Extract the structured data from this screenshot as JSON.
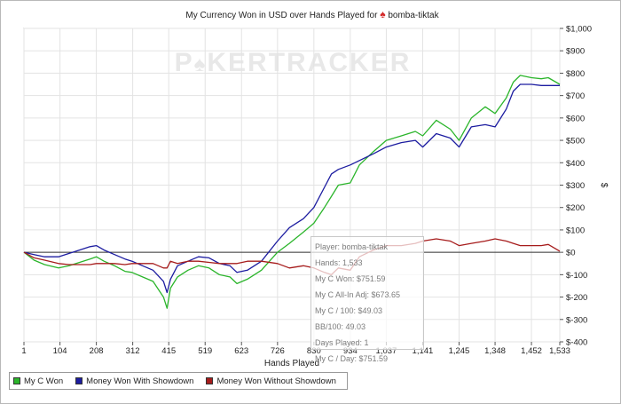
{
  "chart_data": {
    "type": "line",
    "title": "My Currency Won in USD over Hands Played for",
    "player_name": "bomba-tiktak",
    "watermark": {
      "left": "P",
      "mid": "KER",
      "right": "TRACKER"
    },
    "xlabel": "Hands Played",
    "ylabel": "$",
    "xlim": [
      1,
      1533
    ],
    "ylim": [
      -400,
      1000
    ],
    "x_ticks": [
      1,
      104,
      208,
      312,
      415,
      519,
      623,
      726,
      830,
      934,
      1037,
      1141,
      1245,
      1348,
      1452,
      1533
    ],
    "x_tick_labels": [
      "1",
      "104",
      "208",
      "312",
      "415",
      "519",
      "623",
      "726",
      "830",
      "934",
      "1,037",
      "1,141",
      "1,245",
      "1,348",
      "1,452",
      "1,533"
    ],
    "y_ticks": [
      -400,
      -300,
      -200,
      -100,
      0,
      100,
      200,
      300,
      400,
      500,
      600,
      700,
      800,
      900,
      1000
    ],
    "y_tick_labels": [
      "$-400",
      "$-300",
      "$-200",
      "$-100",
      "$0",
      "$100",
      "$200",
      "$300",
      "$400",
      "$500",
      "$600",
      "$700",
      "$800",
      "$900",
      "$1,000"
    ],
    "grid": true,
    "legend_position": "bottom-left",
    "series": [
      {
        "name": "My C Won",
        "color": "#2bb52b",
        "x": [
          1,
          30,
          60,
          100,
          130,
          160,
          190,
          208,
          230,
          260,
          290,
          310,
          340,
          370,
          400,
          410,
          420,
          440,
          470,
          500,
          530,
          560,
          590,
          610,
          640,
          680,
          726,
          760,
          800,
          830,
          860,
          880,
          900,
          934,
          960,
          1000,
          1037,
          1080,
          1120,
          1141,
          1180,
          1220,
          1245,
          1280,
          1320,
          1348,
          1380,
          1400,
          1420,
          1452,
          1480,
          1500,
          1533
        ],
        "y": [
          0,
          -35,
          -55,
          -70,
          -60,
          -45,
          -30,
          -20,
          -40,
          -60,
          -85,
          -90,
          -110,
          -130,
          -200,
          -250,
          -160,
          -110,
          -80,
          -60,
          -70,
          -100,
          -110,
          -140,
          -120,
          -80,
          0,
          40,
          90,
          130,
          200,
          250,
          300,
          310,
          390,
          450,
          500,
          520,
          540,
          520,
          590,
          550,
          500,
          600,
          650,
          620,
          690,
          760,
          790,
          780,
          775,
          780,
          750
        ]
      },
      {
        "name": "Money Won With Showdown",
        "color": "#1c1ca0",
        "x": [
          1,
          30,
          60,
          100,
          130,
          160,
          190,
          208,
          230,
          260,
          290,
          310,
          340,
          370,
          400,
          410,
          420,
          440,
          470,
          500,
          530,
          560,
          590,
          610,
          640,
          680,
          726,
          760,
          800,
          830,
          860,
          880,
          900,
          934,
          960,
          1000,
          1037,
          1080,
          1120,
          1141,
          1180,
          1220,
          1245,
          1280,
          1320,
          1348,
          1380,
          1400,
          1420,
          1452,
          1480,
          1500,
          1533
        ],
        "y": [
          0,
          -10,
          -20,
          -20,
          -5,
          10,
          25,
          30,
          10,
          -10,
          -30,
          -40,
          -60,
          -80,
          -130,
          -180,
          -120,
          -60,
          -40,
          -20,
          -25,
          -50,
          -60,
          -90,
          -80,
          -40,
          50,
          110,
          150,
          200,
          290,
          350,
          370,
          390,
          410,
          440,
          470,
          490,
          500,
          470,
          530,
          510,
          470,
          560,
          570,
          560,
          640,
          720,
          750,
          750,
          745,
          745,
          745
        ]
      },
      {
        "name": "Money Won Without Showdown",
        "color": "#a61c1c",
        "x": [
          1,
          30,
          60,
          100,
          130,
          160,
          190,
          208,
          230,
          260,
          290,
          310,
          340,
          370,
          400,
          410,
          420,
          440,
          470,
          500,
          530,
          560,
          590,
          610,
          640,
          680,
          726,
          760,
          800,
          830,
          860,
          880,
          900,
          934,
          960,
          1000,
          1037,
          1080,
          1120,
          1141,
          1180,
          1220,
          1245,
          1280,
          1320,
          1348,
          1380,
          1400,
          1420,
          1452,
          1480,
          1500,
          1533
        ],
        "y": [
          0,
          -25,
          -35,
          -50,
          -55,
          -55,
          -55,
          -50,
          -50,
          -50,
          -55,
          -50,
          -50,
          -50,
          -70,
          -70,
          -40,
          -50,
          -40,
          -40,
          -45,
          -50,
          -50,
          -50,
          -40,
          -40,
          -50,
          -70,
          -60,
          -70,
          -90,
          -100,
          -70,
          -80,
          -20,
          10,
          30,
          30,
          40,
          50,
          60,
          50,
          30,
          40,
          50,
          60,
          50,
          40,
          30,
          30,
          30,
          35,
          5
        ]
      }
    ]
  },
  "tooltip": {
    "lines": [
      "Player: bomba-tiktak",
      "Hands: 1,533",
      "My C Won: $751.59",
      "My C All-In Adj: $673.65",
      "My C / 100: $49.03",
      "BB/100: 49.03",
      "Days Played: 1",
      "My C / Day: $751.59"
    ]
  },
  "colors": {
    "grid": "#e3e3e3",
    "zero_line": "#333333",
    "watermark": "#e8e8e8"
  }
}
